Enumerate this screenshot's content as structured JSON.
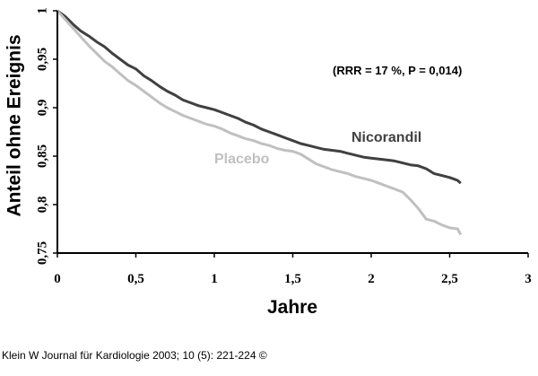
{
  "citation": "Klein W Journal für Kardiologie 2003; 10 (5): 221-224 ©",
  "chart_data": {
    "type": "line",
    "title": "",
    "xlabel": "Jahre",
    "ylabel": "Anteil ohne Ereignis",
    "xlim": [
      0,
      3
    ],
    "ylim": [
      0.75,
      1
    ],
    "x_ticks": [
      0,
      0.5,
      1,
      1.5,
      2,
      2.5,
      3
    ],
    "x_tick_labels": [
      "0",
      "0,5",
      "1",
      "1,5",
      "2",
      "2,5",
      "3"
    ],
    "y_ticks": [
      0.75,
      0.8,
      0.85,
      0.9,
      0.95,
      1
    ],
    "y_tick_labels": [
      "0,75",
      "0,8",
      "0,85",
      "0,9",
      "0,95",
      "1"
    ],
    "grid": false,
    "legend": "none",
    "annotation": "(RRR  = 17 %, P = 0,014)",
    "series": [
      {
        "name": "Nicorandil",
        "color": "#404040",
        "x": [
          0,
          0.05,
          0.1,
          0.15,
          0.2,
          0.25,
          0.3,
          0.35,
          0.4,
          0.45,
          0.5,
          0.55,
          0.6,
          0.65,
          0.7,
          0.75,
          0.8,
          0.85,
          0.9,
          0.95,
          1.0,
          1.05,
          1.1,
          1.15,
          1.2,
          1.25,
          1.3,
          1.35,
          1.4,
          1.45,
          1.5,
          1.55,
          1.6,
          1.65,
          1.7,
          1.75,
          1.8,
          1.85,
          1.9,
          1.95,
          2.0,
          2.05,
          2.1,
          2.15,
          2.2,
          2.25,
          2.3,
          2.35,
          2.4,
          2.45,
          2.5,
          2.55,
          2.57
        ],
        "values": [
          1.0,
          0.994,
          0.986,
          0.979,
          0.974,
          0.968,
          0.963,
          0.956,
          0.95,
          0.944,
          0.94,
          0.933,
          0.928,
          0.922,
          0.917,
          0.913,
          0.908,
          0.905,
          0.902,
          0.9,
          0.898,
          0.895,
          0.892,
          0.889,
          0.885,
          0.882,
          0.878,
          0.875,
          0.872,
          0.869,
          0.866,
          0.863,
          0.861,
          0.859,
          0.857,
          0.856,
          0.855,
          0.853,
          0.851,
          0.849,
          0.848,
          0.847,
          0.846,
          0.845,
          0.843,
          0.841,
          0.84,
          0.837,
          0.832,
          0.83,
          0.828,
          0.825,
          0.822
        ]
      },
      {
        "name": "Placebo",
        "color": "#c0c0c0",
        "x": [
          0,
          0.05,
          0.1,
          0.15,
          0.2,
          0.25,
          0.3,
          0.35,
          0.4,
          0.45,
          0.5,
          0.55,
          0.6,
          0.65,
          0.7,
          0.75,
          0.8,
          0.85,
          0.9,
          0.95,
          1.0,
          1.05,
          1.1,
          1.15,
          1.2,
          1.25,
          1.3,
          1.35,
          1.4,
          1.45,
          1.5,
          1.55,
          1.6,
          1.65,
          1.7,
          1.75,
          1.8,
          1.85,
          1.9,
          1.95,
          2.0,
          2.05,
          2.1,
          2.15,
          2.2,
          2.25,
          2.3,
          2.35,
          2.4,
          2.45,
          2.5,
          2.55,
          2.57
        ],
        "values": [
          1.0,
          0.991,
          0.982,
          0.973,
          0.964,
          0.956,
          0.948,
          0.942,
          0.935,
          0.928,
          0.923,
          0.917,
          0.911,
          0.905,
          0.9,
          0.896,
          0.892,
          0.889,
          0.886,
          0.883,
          0.881,
          0.878,
          0.874,
          0.871,
          0.868,
          0.866,
          0.863,
          0.861,
          0.858,
          0.856,
          0.855,
          0.852,
          0.847,
          0.842,
          0.839,
          0.836,
          0.834,
          0.832,
          0.829,
          0.827,
          0.825,
          0.822,
          0.819,
          0.816,
          0.813,
          0.805,
          0.796,
          0.785,
          0.783,
          0.779,
          0.776,
          0.775,
          0.769
        ]
      }
    ]
  }
}
